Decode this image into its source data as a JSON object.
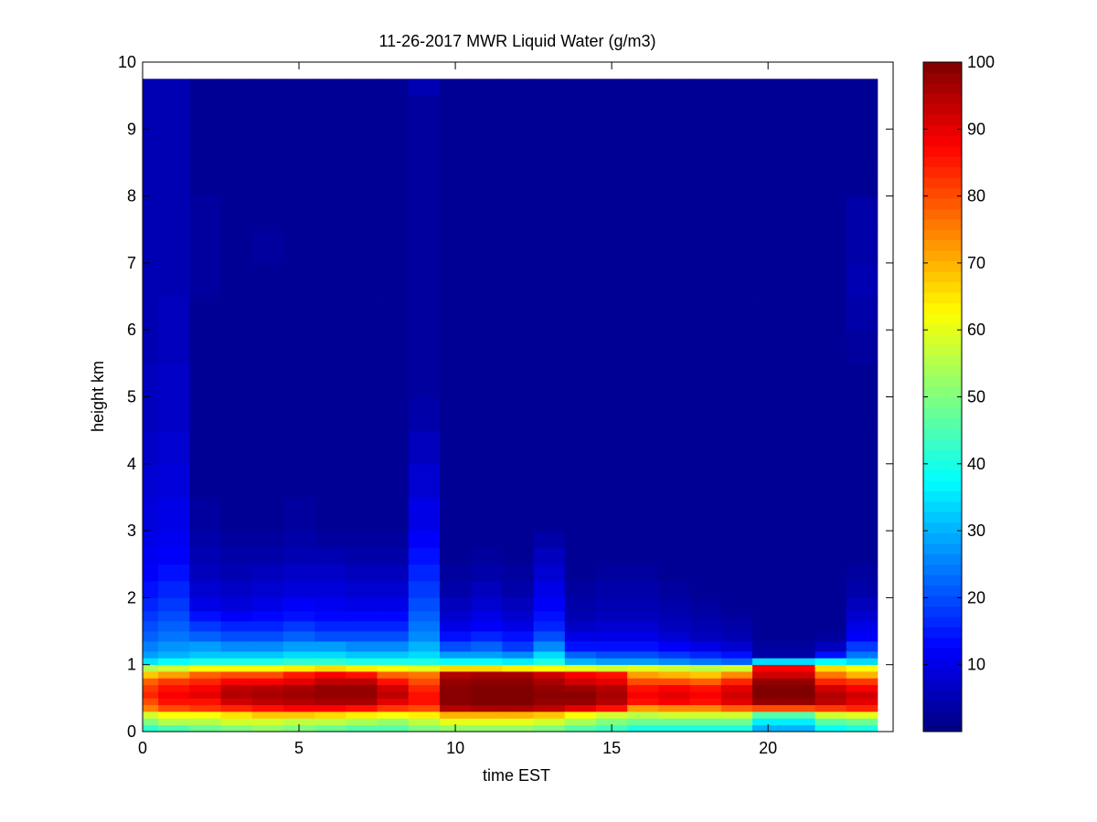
{
  "figure": {
    "title": "11-26-2017 MWR Liquid Water (g/m3)",
    "xlabel": "time EST",
    "ylabel": "height km"
  },
  "chart_data": {
    "type": "heatmap",
    "title": "11-26-2017 MWR Liquid Water (g/m3)",
    "xlabel": "time EST",
    "ylabel": "height km",
    "xlim": [
      0,
      24
    ],
    "ylim": [
      0,
      10
    ],
    "xticks": [
      0,
      5,
      10,
      15,
      20
    ],
    "yticks": [
      0,
      1,
      2,
      3,
      4,
      5,
      6,
      7,
      8,
      9,
      10
    ],
    "colormap": "jet",
    "clim": [
      0,
      100
    ],
    "colorbar_ticks": [
      10,
      20,
      30,
      40,
      50,
      60,
      70,
      80,
      90,
      100
    ],
    "x": [
      0,
      1,
      2,
      3,
      4,
      5,
      6,
      7,
      8,
      9,
      10,
      11,
      12,
      13,
      14,
      15,
      16,
      17,
      18,
      19,
      20,
      21,
      22,
      23
    ],
    "data_top_km": 9.75,
    "height_bins_km": [
      0.0,
      0.1,
      0.2,
      0.3,
      0.4,
      0.5,
      0.6,
      0.7,
      0.8,
      0.9,
      1.0,
      1.1,
      1.2,
      1.35,
      1.5,
      1.65,
      1.8,
      2.0,
      2.25,
      2.5,
      2.75,
      3.0,
      3.5,
      4.0,
      4.5,
      5.0,
      5.5,
      6.0,
      6.5,
      7.0,
      7.5,
      8.0,
      8.5,
      9.0,
      9.5,
      9.75
    ],
    "profiles": [
      [
        42,
        50,
        58,
        75,
        80,
        84,
        82,
        78,
        68,
        55,
        35,
        28,
        25,
        22,
        20,
        18,
        16,
        14,
        12,
        11,
        10,
        9,
        8,
        7,
        6,
        6,
        5,
        5,
        5,
        5,
        5,
        5,
        5,
        5,
        5
      ],
      [
        45,
        55,
        62,
        80,
        86,
        88,
        86,
        82,
        72,
        58,
        38,
        30,
        27,
        24,
        22,
        20,
        18,
        16,
        14,
        12,
        11,
        10,
        9,
        8,
        7,
        7,
        6,
        6,
        5,
        5,
        5,
        5,
        5,
        5,
        5
      ],
      [
        48,
        55,
        62,
        82,
        86,
        90,
        88,
        84,
        78,
        62,
        40,
        32,
        28,
        22,
        18,
        14,
        10,
        8,
        6,
        5,
        4,
        3,
        2,
        2,
        2,
        2,
        2,
        2,
        3,
        3,
        3,
        2,
        2,
        2,
        2
      ],
      [
        50,
        58,
        65,
        84,
        92,
        95,
        94,
        88,
        80,
        62,
        40,
        32,
        26,
        20,
        16,
        12,
        9,
        7,
        5,
        4,
        3,
        2,
        2,
        2,
        2,
        2,
        2,
        2,
        2,
        2,
        2,
        2,
        2,
        2,
        2
      ],
      [
        52,
        58,
        68,
        86,
        94,
        96,
        95,
        88,
        80,
        62,
        40,
        32,
        26,
        20,
        16,
        13,
        10,
        8,
        6,
        4,
        3,
        2,
        2,
        2,
        2,
        2,
        2,
        2,
        2,
        3,
        2,
        2,
        2,
        2,
        2
      ],
      [
        50,
        56,
        68,
        88,
        95,
        97,
        96,
        90,
        85,
        64,
        42,
        34,
        28,
        22,
        18,
        14,
        12,
        9,
        7,
        5,
        4,
        3,
        2,
        2,
        2,
        2,
        2,
        2,
        2,
        2,
        2,
        2,
        2,
        2,
        2
      ],
      [
        48,
        56,
        66,
        88,
        96,
        98,
        98,
        94,
        88,
        66,
        42,
        34,
        28,
        20,
        16,
        13,
        11,
        9,
        7,
        5,
        3,
        2,
        2,
        2,
        2,
        2,
        2,
        2,
        2,
        2,
        2,
        2,
        2,
        2,
        2
      ],
      [
        46,
        54,
        64,
        86,
        96,
        98,
        98,
        94,
        86,
        64,
        40,
        32,
        26,
        20,
        16,
        13,
        10,
        8,
        6,
        4,
        3,
        2,
        2,
        2,
        2,
        2,
        2,
        2,
        2,
        2,
        2,
        2,
        2,
        2,
        2
      ],
      [
        46,
        52,
        62,
        82,
        90,
        94,
        92,
        86,
        78,
        62,
        40,
        32,
        26,
        20,
        16,
        13,
        10,
        8,
        6,
        4,
        3,
        2,
        2,
        2,
        2,
        2,
        2,
        2,
        2,
        2,
        2,
        2,
        2,
        2,
        2
      ],
      [
        50,
        56,
        64,
        80,
        86,
        86,
        84,
        80,
        76,
        60,
        40,
        34,
        30,
        26,
        24,
        22,
        20,
        18,
        16,
        14,
        12,
        10,
        8,
        6,
        4,
        3,
        3,
        3,
        3,
        3,
        3,
        3,
        3,
        3,
        5
      ],
      [
        52,
        60,
        70,
        95,
        99,
        99,
        99,
        98,
        95,
        66,
        38,
        28,
        20,
        14,
        10,
        8,
        6,
        4,
        3,
        2,
        2,
        2,
        2,
        2,
        2,
        2,
        2,
        2,
        2,
        2,
        2,
        2,
        2,
        2,
        2
      ],
      [
        52,
        60,
        70,
        96,
        100,
        100,
        100,
        99,
        96,
        66,
        38,
        28,
        22,
        16,
        12,
        10,
        8,
        6,
        4,
        3,
        2,
        2,
        2,
        2,
        2,
        2,
        2,
        2,
        2,
        2,
        2,
        2,
        2,
        2,
        2
      ],
      [
        52,
        60,
        70,
        96,
        100,
        100,
        100,
        99,
        96,
        64,
        36,
        26,
        18,
        14,
        10,
        8,
        6,
        4,
        3,
        2,
        2,
        2,
        2,
        2,
        2,
        2,
        2,
        2,
        2,
        2,
        2,
        2,
        2,
        2,
        2
      ],
      [
        50,
        58,
        68,
        94,
        98,
        99,
        98,
        96,
        92,
        62,
        40,
        34,
        26,
        20,
        16,
        14,
        12,
        10,
        8,
        6,
        4,
        2,
        2,
        2,
        2,
        2,
        2,
        2,
        2,
        2,
        2,
        2,
        2,
        2,
        2
      ],
      [
        46,
        54,
        62,
        90,
        98,
        99,
        97,
        92,
        88,
        60,
        30,
        22,
        14,
        10,
        7,
        5,
        4,
        3,
        2,
        2,
        2,
        2,
        2,
        2,
        2,
        2,
        2,
        2,
        2,
        2,
        2,
        2,
        2,
        2,
        2
      ],
      [
        44,
        50,
        58,
        86,
        95,
        96,
        95,
        90,
        86,
        58,
        28,
        20,
        14,
        10,
        8,
        6,
        5,
        4,
        3,
        2,
        2,
        2,
        2,
        2,
        2,
        2,
        2,
        2,
        2,
        2,
        2,
        2,
        2,
        2,
        2
      ],
      [
        40,
        48,
        56,
        72,
        86,
        88,
        86,
        80,
        72,
        60,
        28,
        20,
        14,
        10,
        8,
        6,
        5,
        4,
        3,
        2,
        2,
        2,
        2,
        2,
        2,
        2,
        2,
        2,
        2,
        2,
        2,
        2,
        2,
        2,
        2
      ],
      [
        40,
        48,
        58,
        74,
        88,
        90,
        88,
        80,
        70,
        58,
        26,
        18,
        12,
        8,
        6,
        5,
        4,
        3,
        2,
        2,
        2,
        2,
        2,
        2,
        2,
        2,
        2,
        2,
        2,
        2,
        2,
        2,
        2,
        2,
        2
      ],
      [
        40,
        48,
        58,
        74,
        86,
        88,
        86,
        78,
        68,
        56,
        24,
        16,
        10,
        6,
        5,
        4,
        3,
        2,
        2,
        2,
        2,
        2,
        2,
        2,
        2,
        2,
        2,
        2,
        2,
        2,
        2,
        2,
        2,
        2,
        2
      ],
      [
        40,
        48,
        58,
        78,
        90,
        92,
        90,
        84,
        74,
        58,
        22,
        14,
        8,
        5,
        4,
        3,
        2,
        2,
        2,
        2,
        2,
        2,
        2,
        2,
        2,
        2,
        2,
        2,
        2,
        2,
        2,
        2,
        2,
        2,
        2
      ],
      [
        30,
        36,
        46,
        80,
        98,
        100,
        100,
        98,
        92,
        88,
        34,
        4,
        3,
        2,
        2,
        2,
        2,
        2,
        2,
        2,
        2,
        2,
        2,
        2,
        2,
        2,
        2,
        2,
        2,
        2,
        2,
        2,
        2,
        2,
        2
      ],
      [
        30,
        36,
        46,
        80,
        98,
        100,
        100,
        98,
        92,
        88,
        34,
        4,
        3,
        2,
        2,
        2,
        2,
        2,
        2,
        2,
        2,
        2,
        2,
        2,
        2,
        2,
        2,
        2,
        2,
        2,
        2,
        2,
        2,
        2,
        2
      ],
      [
        38,
        46,
        58,
        82,
        94,
        95,
        92,
        84,
        76,
        66,
        38,
        14,
        6,
        3,
        2,
        2,
        2,
        2,
        2,
        2,
        2,
        2,
        2,
        2,
        2,
        2,
        2,
        2,
        2,
        2,
        2,
        2,
        2,
        2,
        2
      ],
      [
        40,
        48,
        60,
        84,
        90,
        92,
        88,
        82,
        70,
        62,
        34,
        24,
        18,
        12,
        10,
        8,
        6,
        4,
        3,
        2,
        2,
        2,
        2,
        2,
        2,
        2,
        3,
        4,
        5,
        4,
        4,
        2,
        2,
        2,
        2
      ]
    ]
  }
}
